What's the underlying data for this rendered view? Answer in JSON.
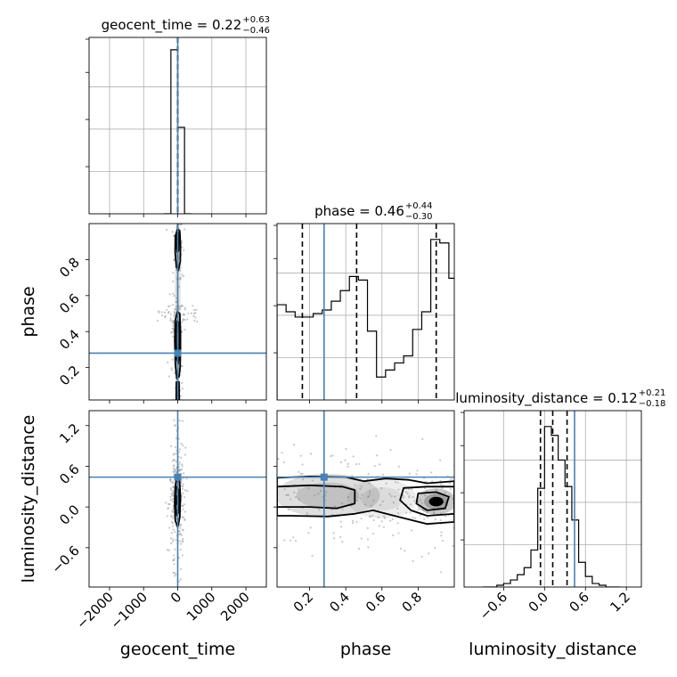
{
  "chart_data": {
    "type": "corner",
    "parameters": [
      "geocent_time",
      "phase",
      "luminosity_distance"
    ],
    "axis_labels": {
      "geocent_time": "geocent_time",
      "phase": "phase",
      "luminosity_distance": "luminosity_distance"
    },
    "ranges": {
      "geocent_time": [
        -2600,
        2600
      ],
      "phase": [
        0.02,
        1.0
      ],
      "luminosity_distance": [
        -1.18,
        1.42
      ]
    },
    "ticks": {
      "geocent_time": [
        {
          "v": -2000,
          "t": "−2000"
        },
        {
          "v": -1000,
          "t": "−1000"
        },
        {
          "v": 0,
          "t": "0"
        },
        {
          "v": 1000,
          "t": "1000"
        },
        {
          "v": 2000,
          "t": "2000"
        }
      ],
      "phase": [
        {
          "v": 0.2,
          "t": "0.2"
        },
        {
          "v": 0.4,
          "t": "0.4"
        },
        {
          "v": 0.6,
          "t": "0.6"
        },
        {
          "v": 0.8,
          "t": "0.8"
        }
      ],
      "luminosity_distance": [
        {
          "v": -0.6,
          "t": "−0.6"
        },
        {
          "v": 0.0,
          "t": "0.0"
        },
        {
          "v": 0.6,
          "t": "0.6"
        },
        {
          "v": 1.2,
          "t": "1.2"
        }
      ]
    },
    "truths": {
      "geocent_time": 0,
      "phase": 0.28,
      "luminosity_distance": 0.44
    },
    "truth_color": "#4682b4",
    "contour_color": "#000000",
    "marginals": {
      "geocent_time": {
        "title": "geocent_time = 0.22",
        "title_sup": "+0.63",
        "title_sub": "−0.46",
        "quantiles": [
          -0.24,
          0.22,
          0.85
        ],
        "bin_edges": [
          -400,
          -200,
          0,
          200,
          400
        ],
        "counts": [
          0,
          0.93,
          0.49,
          0
        ],
        "ymax": 1.0,
        "grid": true
      },
      "phase": {
        "title": "phase = 0.46",
        "title_sup": "+0.44",
        "title_sub": "−0.30",
        "quantiles": [
          0.16,
          0.46,
          0.9
        ],
        "bin_edges": [
          0.02,
          0.07,
          0.12,
          0.17,
          0.22,
          0.27,
          0.32,
          0.37,
          0.42,
          0.47,
          0.52,
          0.57,
          0.62,
          0.67,
          0.72,
          0.77,
          0.82,
          0.87,
          0.92,
          0.97,
          1.02
        ],
        "counts": [
          0.54,
          0.5,
          0.47,
          0.47,
          0.49,
          0.51,
          0.56,
          0.62,
          0.7,
          0.68,
          0.39,
          0.13,
          0.17,
          0.21,
          0.25,
          0.4,
          0.5,
          0.91,
          0.89,
          0.69
        ],
        "ymax": 1.0,
        "grid": true
      },
      "luminosity_distance": {
        "title": "luminosity_distance = 0.12",
        "title_sup": "+0.21",
        "title_sub": "−0.18",
        "quantiles": [
          -0.06,
          0.12,
          0.33
        ],
        "bin_edges": [
          -0.9,
          -0.8,
          -0.7,
          -0.6,
          -0.5,
          -0.4,
          -0.3,
          -0.2,
          -0.1,
          0.0,
          0.1,
          0.2,
          0.3,
          0.4,
          0.5,
          0.6,
          0.7,
          0.8,
          0.9,
          1.0,
          1.1
        ],
        "counts": [
          0.0,
          0.0,
          0.01,
          0.02,
          0.04,
          0.07,
          0.11,
          0.21,
          0.56,
          0.91,
          0.86,
          0.72,
          0.57,
          0.38,
          0.14,
          0.06,
          0.02,
          0.01,
          0.0,
          0.0
        ],
        "ymax": 1.0,
        "grid": true
      }
    },
    "pairs": [
      {
        "x": "geocent_time",
        "y": "phase",
        "density_blobs": [
          {
            "cx": 0,
            "cy": 0.9,
            "sx": 40,
            "sy": 0.07,
            "a": 0.9
          },
          {
            "cx": 0,
            "cy": 0.62,
            "sx": 60,
            "sy": 0.25,
            "a": 0.3
          },
          {
            "cx": 0,
            "cy": 0.35,
            "sx": 50,
            "sy": 0.12,
            "a": 0.85
          },
          {
            "cx": 0,
            "cy": 0.06,
            "sx": 35,
            "sy": 0.06,
            "a": 0.8
          }
        ],
        "contours": [
          [
            [
              -5,
              0.97
            ],
            [
              60,
              0.96
            ],
            [
              80,
              0.88
            ],
            [
              75,
              0.79
            ],
            [
              20,
              0.74
            ],
            [
              -40,
              0.76
            ],
            [
              -75,
              0.84
            ],
            [
              -70,
              0.93
            ]
          ],
          [
            [
              -15,
              0.96
            ],
            [
              25,
              0.95
            ],
            [
              40,
              0.9
            ],
            [
              25,
              0.85
            ],
            [
              -10,
              0.84
            ],
            [
              -40,
              0.88
            ],
            [
              -35,
              0.94
            ]
          ],
          [
            [
              -10,
              0.51
            ],
            [
              60,
              0.5
            ],
            [
              80,
              0.4
            ],
            [
              80,
              0.3
            ],
            [
              70,
              0.2
            ],
            [
              40,
              0.15
            ],
            [
              -30,
              0.14
            ],
            [
              -70,
              0.22
            ],
            [
              -85,
              0.35
            ],
            [
              -75,
              0.46
            ]
          ],
          [
            [
              -15,
              0.46
            ],
            [
              35,
              0.45
            ],
            [
              50,
              0.38
            ],
            [
              45,
              0.27
            ],
            [
              10,
              0.22
            ],
            [
              -30,
              0.25
            ],
            [
              -50,
              0.35
            ],
            [
              -40,
              0.43
            ]
          ],
          [
            [
              -40,
              0.12
            ],
            [
              40,
              0.12
            ],
            [
              45,
              0.02
            ],
            [
              -45,
              0.02
            ]
          ]
        ],
        "cores": [
          {
            "cx": -10,
            "cy": 0.91,
            "rx": 25,
            "ry": 0.03
          },
          {
            "cx": -5,
            "cy": 0.04,
            "rx": 20,
            "ry": 0.03
          }
        ],
        "scatter_spread": {
          "x": [
            -600,
            600
          ],
          "y": [
            0.45,
            0.55
          ]
        }
      },
      {
        "x": "geocent_time",
        "y": "luminosity_distance",
        "density_blobs": [
          {
            "cx": -20,
            "cy": 0.12,
            "sx": 60,
            "sy": 0.18,
            "a": 0.9
          }
        ],
        "contours": [
          [
            [
              -30,
              0.45
            ],
            [
              50,
              0.4
            ],
            [
              80,
              0.15
            ],
            [
              60,
              -0.15
            ],
            [
              0,
              -0.3
            ],
            [
              -70,
              -0.2
            ],
            [
              -90,
              0.05
            ],
            [
              -70,
              0.3
            ]
          ],
          [
            [
              -25,
              0.3
            ],
            [
              30,
              0.25
            ],
            [
              45,
              0.1
            ],
            [
              30,
              -0.08
            ],
            [
              -20,
              -0.12
            ],
            [
              -60,
              -0.02
            ],
            [
              -65,
              0.15
            ],
            [
              -50,
              0.25
            ]
          ]
        ],
        "cores": [
          {
            "cx": -20,
            "cy": 0.1,
            "rx": 30,
            "ry": 0.08
          }
        ],
        "scatter_spread": {
          "x": [
            -150,
            150
          ],
          "y": [
            -1.1,
            1.3
          ]
        }
      },
      {
        "x": "phase",
        "y": "luminosity_distance",
        "density_blobs": [
          {
            "cx": 0.3,
            "cy": 0.17,
            "sx": 0.18,
            "sy": 0.2,
            "a": 0.55
          },
          {
            "cx": 0.6,
            "cy": 0.12,
            "sx": 0.12,
            "sy": 0.18,
            "a": 0.3
          },
          {
            "cx": 0.9,
            "cy": 0.08,
            "sx": 0.07,
            "sy": 0.12,
            "a": 0.9
          }
        ],
        "contours": [
          [
            [
              0.02,
              0.43
            ],
            [
              0.2,
              0.45
            ],
            [
              0.4,
              0.44
            ],
            [
              0.5,
              0.38
            ],
            [
              0.62,
              0.42
            ],
            [
              0.75,
              0.4
            ],
            [
              0.85,
              0.35
            ],
            [
              1.0,
              0.38
            ],
            [
              1.0,
              -0.22
            ],
            [
              0.85,
              -0.25
            ],
            [
              0.7,
              -0.15
            ],
            [
              0.55,
              -0.05
            ],
            [
              0.45,
              -0.1
            ],
            [
              0.3,
              -0.14
            ],
            [
              0.1,
              -0.13
            ],
            [
              0.02,
              -0.13
            ]
          ],
          [
            [
              0.02,
              0.3
            ],
            [
              0.2,
              0.32
            ],
            [
              0.38,
              0.3
            ],
            [
              0.45,
              0.25
            ],
            [
              0.45,
              0.05
            ],
            [
              0.35,
              -0.02
            ],
            [
              0.2,
              0.0
            ],
            [
              0.02,
              0.0
            ]
          ],
          [
            [
              0.72,
              0.28
            ],
            [
              0.85,
              0.3
            ],
            [
              1.0,
              0.3
            ],
            [
              1.0,
              -0.1
            ],
            [
              0.85,
              -0.13
            ],
            [
              0.76,
              -0.05
            ],
            [
              0.7,
              0.1
            ]
          ],
          [
            [
              0.8,
              0.2
            ],
            [
              0.9,
              0.22
            ],
            [
              0.97,
              0.15
            ],
            [
              0.95,
              -0.02
            ],
            [
              0.85,
              -0.05
            ],
            [
              0.79,
              0.05
            ]
          ]
        ],
        "cores": [
          {
            "cx": 0.9,
            "cy": 0.08,
            "rx": 0.04,
            "ry": 0.07
          }
        ],
        "scatter_spread": {
          "x": [
            0.02,
            1.0
          ],
          "y": [
            -0.7,
            0.8
          ]
        }
      }
    ]
  }
}
